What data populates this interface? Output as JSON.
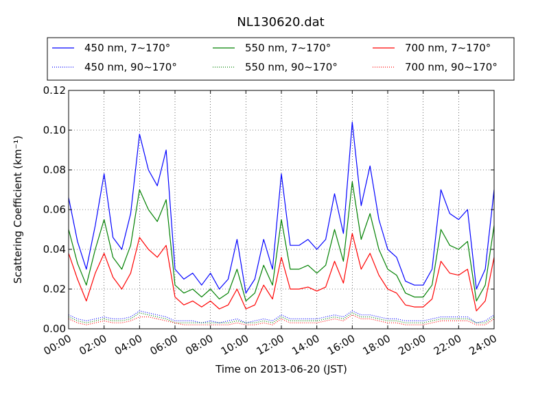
{
  "chart_data": {
    "type": "line",
    "title": "NL130620.dat",
    "xlabel": "Time on 2013-06-20 (JST)",
    "ylabel": "Scattering Coefficient (km⁻¹)",
    "xlim": [
      "00:00",
      "24:00"
    ],
    "ylim": [
      0,
      0.12
    ],
    "x_ticks": [
      "00:00",
      "02:00",
      "04:00",
      "06:00",
      "08:00",
      "10:00",
      "12:00",
      "14:00",
      "16:00",
      "18:00",
      "20:00",
      "22:00",
      "24:00"
    ],
    "y_ticks": [
      "0.00",
      "0.02",
      "0.04",
      "0.06",
      "0.08",
      "0.10",
      "0.12"
    ],
    "grid": true,
    "legend_position": "top",
    "x": [
      "00:00",
      "00:30",
      "01:00",
      "01:30",
      "02:00",
      "02:30",
      "03:00",
      "03:30",
      "04:00",
      "04:30",
      "05:00",
      "05:30",
      "06:00",
      "06:30",
      "07:00",
      "07:30",
      "08:00",
      "08:30",
      "09:00",
      "09:30",
      "10:00",
      "10:30",
      "11:00",
      "11:30",
      "12:00",
      "12:30",
      "13:00",
      "13:30",
      "14:00",
      "14:30",
      "15:00",
      "15:30",
      "16:00",
      "16:30",
      "17:00",
      "17:30",
      "18:00",
      "18:30",
      "19:00",
      "19:30",
      "20:00",
      "20:30",
      "21:00",
      "21:30",
      "22:00",
      "22:30",
      "23:00",
      "23:30",
      "24:00"
    ],
    "series": [
      {
        "name": "450 nm, 7∼170°",
        "color": "#0000ff",
        "style": "solid",
        "values": [
          0.066,
          0.044,
          0.03,
          0.052,
          0.078,
          0.046,
          0.04,
          0.058,
          0.098,
          0.08,
          0.072,
          0.09,
          0.03,
          0.025,
          0.028,
          0.022,
          0.028,
          0.02,
          0.025,
          0.045,
          0.018,
          0.025,
          0.045,
          0.03,
          0.078,
          0.042,
          0.042,
          0.045,
          0.04,
          0.045,
          0.068,
          0.048,
          0.104,
          0.062,
          0.082,
          0.055,
          0.04,
          0.036,
          0.024,
          0.022,
          0.022,
          0.03,
          0.07,
          0.058,
          0.055,
          0.06,
          0.02,
          0.03,
          0.07
        ]
      },
      {
        "name": "550 nm, 7∼170°",
        "color": "#008000",
        "style": "solid",
        "values": [
          0.05,
          0.033,
          0.022,
          0.04,
          0.055,
          0.036,
          0.03,
          0.042,
          0.07,
          0.06,
          0.054,
          0.065,
          0.022,
          0.018,
          0.02,
          0.016,
          0.02,
          0.015,
          0.018,
          0.03,
          0.014,
          0.018,
          0.032,
          0.022,
          0.055,
          0.03,
          0.03,
          0.032,
          0.028,
          0.032,
          0.05,
          0.034,
          0.074,
          0.045,
          0.058,
          0.04,
          0.03,
          0.027,
          0.018,
          0.016,
          0.016,
          0.022,
          0.05,
          0.042,
          0.04,
          0.044,
          0.014,
          0.022,
          0.052
        ]
      },
      {
        "name": "700 nm, 7∼170°",
        "color": "#ff0000",
        "style": "solid",
        "values": [
          0.038,
          0.025,
          0.014,
          0.028,
          0.038,
          0.026,
          0.02,
          0.028,
          0.046,
          0.04,
          0.036,
          0.042,
          0.016,
          0.012,
          0.014,
          0.011,
          0.014,
          0.01,
          0.012,
          0.02,
          0.01,
          0.012,
          0.022,
          0.015,
          0.036,
          0.02,
          0.02,
          0.021,
          0.019,
          0.021,
          0.034,
          0.023,
          0.048,
          0.03,
          0.038,
          0.027,
          0.02,
          0.018,
          0.012,
          0.011,
          0.011,
          0.015,
          0.034,
          0.028,
          0.027,
          0.03,
          0.009,
          0.014,
          0.036
        ]
      },
      {
        "name": "450 nm, 90∼170°",
        "color": "#0000ff",
        "style": "dotted",
        "values": [
          0.007,
          0.005,
          0.004,
          0.005,
          0.006,
          0.005,
          0.005,
          0.006,
          0.009,
          0.008,
          0.007,
          0.006,
          0.004,
          0.004,
          0.004,
          0.003,
          0.004,
          0.003,
          0.004,
          0.005,
          0.003,
          0.004,
          0.005,
          0.004,
          0.007,
          0.005,
          0.005,
          0.005,
          0.005,
          0.006,
          0.007,
          0.006,
          0.009,
          0.007,
          0.007,
          0.006,
          0.005,
          0.005,
          0.004,
          0.004,
          0.004,
          0.005,
          0.006,
          0.006,
          0.006,
          0.006,
          0.003,
          0.004,
          0.007
        ]
      },
      {
        "name": "550 nm, 90∼170°",
        "color": "#008000",
        "style": "dotted",
        "values": [
          0.006,
          0.004,
          0.003,
          0.004,
          0.005,
          0.004,
          0.004,
          0.005,
          0.008,
          0.007,
          0.006,
          0.005,
          0.003,
          0.003,
          0.003,
          0.003,
          0.003,
          0.003,
          0.003,
          0.004,
          0.003,
          0.003,
          0.004,
          0.003,
          0.006,
          0.004,
          0.004,
          0.004,
          0.004,
          0.005,
          0.006,
          0.005,
          0.008,
          0.006,
          0.006,
          0.005,
          0.004,
          0.004,
          0.003,
          0.003,
          0.003,
          0.004,
          0.005,
          0.005,
          0.005,
          0.005,
          0.003,
          0.003,
          0.006
        ]
      },
      {
        "name": "700 nm, 90∼170°",
        "color": "#ff0000",
        "style": "dotted",
        "values": [
          0.005,
          0.003,
          0.002,
          0.003,
          0.004,
          0.003,
          0.003,
          0.004,
          0.006,
          0.006,
          0.005,
          0.004,
          0.003,
          0.002,
          0.002,
          0.002,
          0.002,
          0.002,
          0.002,
          0.003,
          0.002,
          0.002,
          0.003,
          0.002,
          0.005,
          0.003,
          0.003,
          0.003,
          0.003,
          0.004,
          0.005,
          0.004,
          0.007,
          0.005,
          0.005,
          0.004,
          0.003,
          0.003,
          0.002,
          0.002,
          0.002,
          0.003,
          0.004,
          0.004,
          0.004,
          0.004,
          0.002,
          0.002,
          0.005
        ]
      }
    ]
  }
}
